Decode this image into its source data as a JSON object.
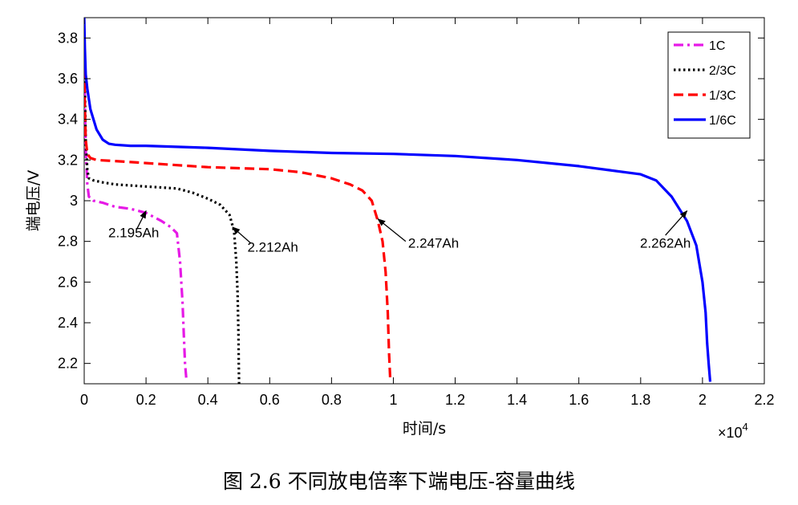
{
  "chart_data": {
    "type": "line",
    "xlabel": "时间/s",
    "ylabel": "端电压/V",
    "x_multiplier": "×10",
    "x_exponent": "4",
    "xlim": [
      0,
      2.2
    ],
    "ylim": [
      2.1,
      3.9
    ],
    "xticks": [
      0,
      0.2,
      0.4,
      0.6,
      0.8,
      1,
      1.2,
      1.4,
      1.6,
      1.8,
      2,
      2.2
    ],
    "xtick_labels": [
      "0",
      "0.2",
      "0.4",
      "0.6",
      "0.8",
      "1",
      "1.2",
      "1.4",
      "1.6",
      "1.8",
      "2",
      "2.2"
    ],
    "yticks": [
      2.2,
      2.4,
      2.6,
      2.8,
      3,
      3.2,
      3.4,
      3.6,
      3.8
    ],
    "ytick_labels": [
      "2.2",
      "2.4",
      "2.6",
      "2.8",
      "3",
      "3.2",
      "3.4",
      "3.6",
      "3.8"
    ],
    "grid": false,
    "legend_position": "top-right",
    "series": [
      {
        "name": "1C",
        "color": "#e619e6",
        "dash": "dashdot",
        "x": [
          0,
          0.002,
          0.005,
          0.01,
          0.015,
          0.03,
          0.06,
          0.1,
          0.15,
          0.2,
          0.25,
          0.28,
          0.3,
          0.31,
          0.318,
          0.322,
          0.326,
          0.33
        ],
        "y": [
          3.75,
          3.5,
          3.25,
          3.08,
          3.02,
          3.0,
          2.99,
          2.97,
          2.96,
          2.94,
          2.9,
          2.87,
          2.84,
          2.7,
          2.5,
          2.35,
          2.2,
          2.13
        ]
      },
      {
        "name": "2/3C",
        "color": "#000000",
        "dash": "dotted",
        "x": [
          0,
          0.002,
          0.005,
          0.01,
          0.015,
          0.03,
          0.06,
          0.1,
          0.15,
          0.2,
          0.25,
          0.3,
          0.35,
          0.4,
          0.44,
          0.47,
          0.485,
          0.492,
          0.496,
          0.499,
          0.5,
          0.501
        ],
        "y": [
          3.8,
          3.55,
          3.3,
          3.15,
          3.11,
          3.1,
          3.09,
          3.08,
          3.075,
          3.07,
          3.065,
          3.06,
          3.04,
          3.01,
          2.98,
          2.93,
          2.85,
          2.7,
          2.55,
          2.35,
          2.2,
          2.1
        ]
      },
      {
        "name": "1/3C",
        "color": "#ff0000",
        "dash": "dashed",
        "x": [
          0,
          0.002,
          0.005,
          0.01,
          0.02,
          0.04,
          0.1,
          0.2,
          0.3,
          0.4,
          0.5,
          0.6,
          0.7,
          0.8,
          0.86,
          0.9,
          0.93,
          0.95,
          0.965,
          0.975,
          0.982,
          0.986,
          0.99
        ],
        "y": [
          3.65,
          3.45,
          3.3,
          3.23,
          3.21,
          3.2,
          3.195,
          3.185,
          3.175,
          3.165,
          3.16,
          3.155,
          3.14,
          3.11,
          3.08,
          3.05,
          3.0,
          2.9,
          2.8,
          2.65,
          2.45,
          2.25,
          2.12
        ]
      },
      {
        "name": "1/6C",
        "color": "#0000ff",
        "dash": "solid",
        "x": [
          0,
          0.002,
          0.005,
          0.01,
          0.02,
          0.04,
          0.06,
          0.08,
          0.1,
          0.15,
          0.2,
          0.3,
          0.4,
          0.6,
          0.8,
          1.0,
          1.2,
          1.4,
          1.6,
          1.7,
          1.8,
          1.85,
          1.9,
          1.95,
          1.98,
          2.0,
          2.01,
          2.015,
          2.02,
          2.025
        ],
        "y": [
          3.9,
          3.75,
          3.62,
          3.55,
          3.45,
          3.35,
          3.3,
          3.28,
          3.275,
          3.27,
          3.27,
          3.265,
          3.26,
          3.245,
          3.235,
          3.23,
          3.22,
          3.2,
          3.17,
          3.15,
          3.13,
          3.1,
          3.02,
          2.9,
          2.78,
          2.6,
          2.45,
          2.3,
          2.2,
          2.11
        ]
      }
    ],
    "annotations": [
      {
        "text": "2.195Ah",
        "arrow_tip": [
          0.2,
          2.95
        ],
        "arrow_tail": [
          0.17,
          2.86
        ],
        "label_at": [
          0.16,
          2.82
        ]
      },
      {
        "text": "2.212Ah",
        "arrow_tip": [
          0.48,
          2.87
        ],
        "arrow_tail": [
          0.54,
          2.79
        ],
        "label_at": [
          0.61,
          2.75
        ]
      },
      {
        "text": "2.247Ah",
        "arrow_tip": [
          0.95,
          2.91
        ],
        "arrow_tail": [
          1.04,
          2.8
        ],
        "label_at": [
          1.13,
          2.77
        ]
      },
      {
        "text": "2.262Ah",
        "arrow_tip": [
          1.95,
          2.95
        ],
        "arrow_tail": [
          1.88,
          2.83
        ],
        "label_at": [
          1.88,
          2.77
        ]
      }
    ]
  },
  "caption": "图 2.6  不同放电倍率下端电压-容量曲线"
}
